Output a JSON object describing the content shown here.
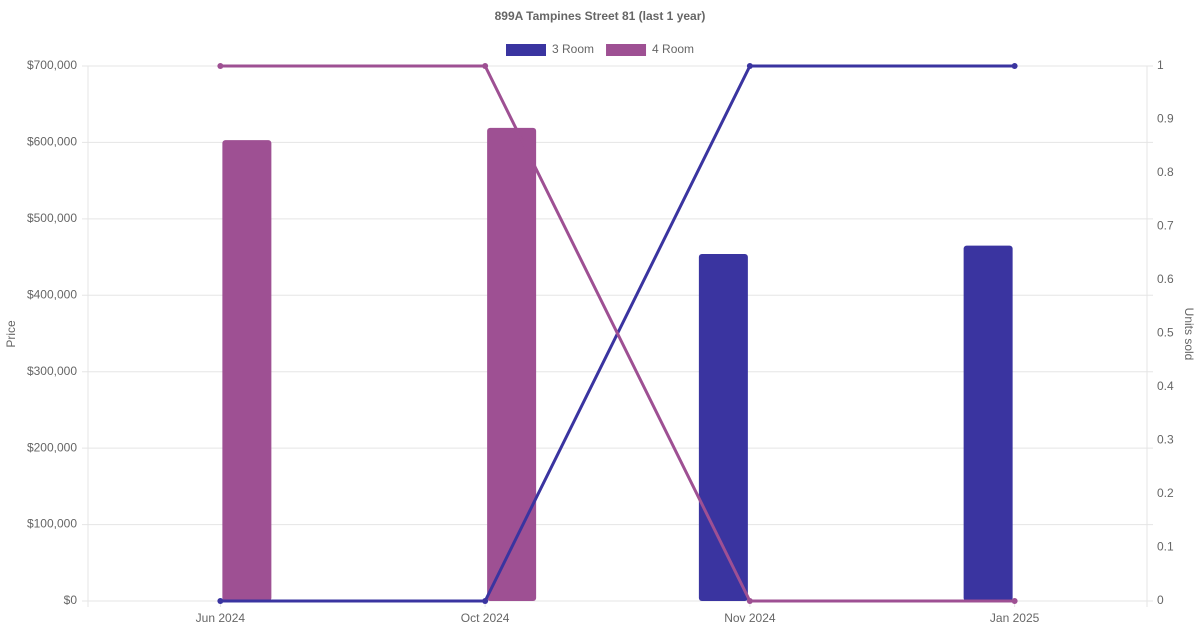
{
  "chart_data": {
    "type": "bar-line",
    "title": "899A Tampines Street 81 (last 1 year)",
    "y_label": "Price",
    "y2_label": "Units sold",
    "categories": [
      "Jun 2024",
      "Oct 2024",
      "Nov 2024",
      "Jan 2025"
    ],
    "series": [
      {
        "name": "3 Room",
        "color": "#3a34a0",
        "values": [
          null,
          null,
          454000,
          465000
        ],
        "units": [
          0,
          0,
          1,
          1
        ]
      },
      {
        "name": "4 Room",
        "color": "#9e5093",
        "values": [
          603000,
          619000,
          null,
          null
        ],
        "units": [
          1,
          1,
          0,
          0
        ]
      }
    ],
    "ylim": [
      0,
      700000
    ],
    "yticks": [
      {
        "value": 0,
        "label": "$0"
      },
      {
        "value": 100000,
        "label": "$100,000"
      },
      {
        "value": 200000,
        "label": "$200,000"
      },
      {
        "value": 300000,
        "label": "$300,000"
      },
      {
        "value": 400000,
        "label": "$400,000"
      },
      {
        "value": 500000,
        "label": "$500,000"
      },
      {
        "value": 600000,
        "label": "$600,000"
      },
      {
        "value": 700000,
        "label": "$700,000"
      }
    ],
    "y2lim": [
      0,
      1
    ],
    "y2ticks": [
      0,
      0.1,
      0.2,
      0.3,
      0.4,
      0.5,
      0.6,
      0.7,
      0.8,
      0.9,
      1
    ],
    "grid": true,
    "legend": "top"
  }
}
